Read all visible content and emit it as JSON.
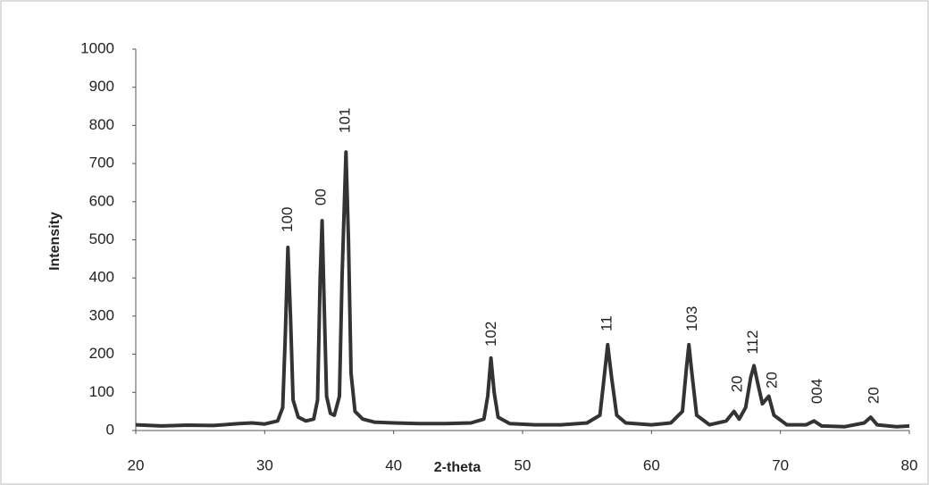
{
  "chart_data": {
    "type": "line",
    "xlabel": "2-theta",
    "ylabel": "Intensity",
    "x": [
      20,
      22,
      24,
      26,
      28,
      29,
      30,
      31,
      31.4,
      31.6,
      31.8,
      32.0,
      32.2,
      32.6,
      33.2,
      33.8,
      34.1,
      34.3,
      34.45,
      34.6,
      34.8,
      35.1,
      35.4,
      35.8,
      36.0,
      36.3,
      36.5,
      36.7,
      37.0,
      37.6,
      38.5,
      40,
      42,
      44,
      46,
      47,
      47.3,
      47.55,
      47.8,
      48.1,
      49,
      51,
      53,
      55,
      56,
      56.3,
      56.6,
      56.9,
      57.3,
      58,
      60,
      61.5,
      62.4,
      62.7,
      62.9,
      63.1,
      63.5,
      64.5,
      65.8,
      66.4,
      66.8,
      67.3,
      67.7,
      67.95,
      68.2,
      68.6,
      69.1,
      69.5,
      70.5,
      72,
      72.6,
      73.2,
      75,
      76.5,
      77,
      77.5,
      79,
      80
    ],
    "values": [
      15,
      12,
      14,
      13,
      18,
      20,
      17,
      25,
      60,
      250,
      480,
      300,
      80,
      35,
      25,
      30,
      80,
      400,
      550,
      350,
      90,
      45,
      40,
      90,
      400,
      730,
      500,
      150,
      50,
      30,
      22,
      20,
      18,
      18,
      20,
      30,
      90,
      190,
      100,
      35,
      18,
      15,
      15,
      20,
      40,
      130,
      225,
      140,
      40,
      20,
      15,
      20,
      50,
      160,
      225,
      160,
      40,
      15,
      25,
      50,
      30,
      60,
      140,
      170,
      130,
      70,
      90,
      40,
      15,
      15,
      25,
      12,
      10,
      20,
      35,
      15,
      10,
      12
    ],
    "color": "#333333",
    "xlim": [
      20,
      80
    ],
    "ylim": [
      0,
      1000
    ],
    "xticks": [
      20,
      30,
      40,
      50,
      60,
      70,
      80
    ],
    "yticks": [
      0,
      100,
      200,
      300,
      400,
      500,
      600,
      700,
      800,
      900,
      1000
    ],
    "grid": false,
    "annotations": [
      {
        "text": "100",
        "x": 31.8,
        "y": 520
      },
      {
        "text": "00",
        "x": 34.4,
        "y": 590
      },
      {
        "text": "101",
        "x": 36.3,
        "y": 780
      },
      {
        "text": "102",
        "x": 47.6,
        "y": 220
      },
      {
        "text": "11",
        "x": 56.6,
        "y": 260
      },
      {
        "text": "103",
        "x": 63.2,
        "y": 260
      },
      {
        "text": "20",
        "x": 66.7,
        "y": 100
      },
      {
        "text": "112",
        "x": 67.9,
        "y": 200
      },
      {
        "text": "20",
        "x": 69.4,
        "y": 110
      },
      {
        "text": "004",
        "x": 72.9,
        "y": 70
      },
      {
        "text": "20",
        "x": 77.3,
        "y": 70
      }
    ]
  }
}
